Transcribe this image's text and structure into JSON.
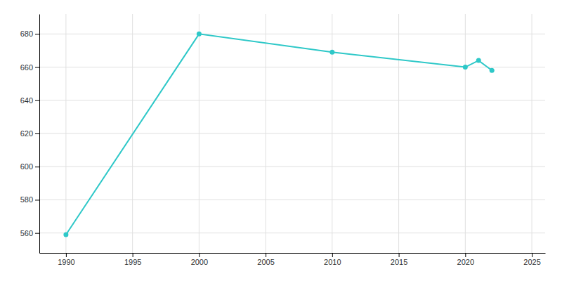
{
  "chart_data": {
    "type": "line",
    "x": [
      1990,
      2000,
      2010,
      2020,
      2021,
      2022
    ],
    "values": [
      559,
      680,
      669,
      660,
      664,
      658
    ],
    "color": "#2ec8c8",
    "marker": "circle",
    "xlim": [
      1988,
      2026
    ],
    "ylim": [
      548,
      692
    ],
    "xticks": [
      1990,
      1995,
      2000,
      2005,
      2010,
      2015,
      2020,
      2025
    ],
    "yticks": [
      560,
      580,
      600,
      620,
      640,
      660,
      680
    ],
    "grid": true
  }
}
